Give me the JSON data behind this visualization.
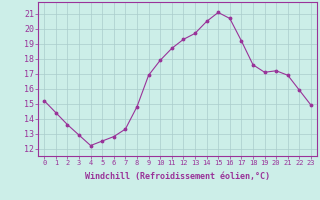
{
  "x": [
    0,
    1,
    2,
    3,
    4,
    5,
    6,
    7,
    8,
    9,
    10,
    11,
    12,
    13,
    14,
    15,
    16,
    17,
    18,
    19,
    20,
    21,
    22,
    23
  ],
  "y": [
    15.2,
    14.4,
    13.6,
    12.9,
    12.2,
    12.5,
    12.8,
    13.3,
    14.8,
    16.9,
    17.9,
    18.7,
    19.3,
    19.7,
    20.5,
    21.1,
    20.7,
    19.2,
    17.6,
    17.1,
    17.2,
    16.9,
    15.9,
    14.9
  ],
  "line_color": "#993399",
  "marker_color": "#993399",
  "background_color": "#cceee8",
  "grid_color": "#aacccc",
  "xlabel": "Windchill (Refroidissement éolien,°C)",
  "xlim": [
    -0.5,
    23.5
  ],
  "ylim": [
    11.5,
    21.8
  ],
  "yticks": [
    12,
    13,
    14,
    15,
    16,
    17,
    18,
    19,
    20,
    21
  ],
  "xticks": [
    0,
    1,
    2,
    3,
    4,
    5,
    6,
    7,
    8,
    9,
    10,
    11,
    12,
    13,
    14,
    15,
    16,
    17,
    18,
    19,
    20,
    21,
    22,
    23
  ],
  "xtick_labels": [
    "0",
    "1",
    "2",
    "3",
    "4",
    "5",
    "6",
    "7",
    "8",
    "9",
    "10",
    "11",
    "12",
    "13",
    "14",
    "15",
    "16",
    "17",
    "18",
    "19",
    "20",
    "21",
    "22",
    "23"
  ],
  "spine_color": "#993399",
  "tick_color": "#993399",
  "label_color": "#993399",
  "xlabel_fontsize": 6.0,
  "xtick_fontsize": 5.0,
  "ytick_fontsize": 6.0
}
